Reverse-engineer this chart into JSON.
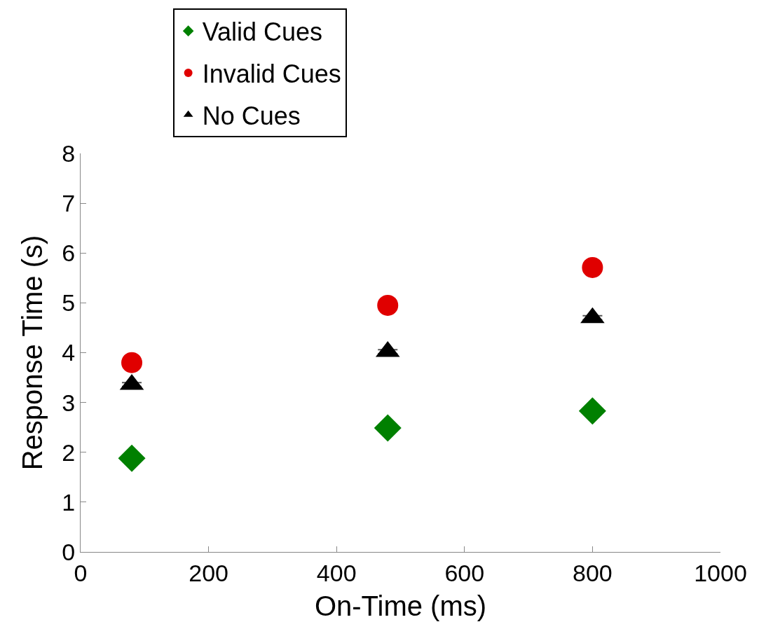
{
  "chart_data": {
    "type": "scatter",
    "xlabel": "On-Time (ms)",
    "ylabel": "Response Time (s)",
    "xlim": [
      0,
      1000
    ],
    "xticks": [
      0,
      200,
      400,
      600,
      800,
      1000
    ],
    "ylim": [
      0,
      8
    ],
    "yticks": [
      0,
      1,
      2,
      3,
      4,
      5,
      6,
      7,
      8
    ],
    "legend": "top",
    "x": [
      80,
      480,
      800
    ],
    "series": [
      {
        "name": "Valid Cues",
        "color": "#008000",
        "marker": "diamond",
        "values": [
          1.88,
          2.49,
          2.83
        ],
        "errors": [
          0.03,
          0.03,
          0.03
        ]
      },
      {
        "name": "Invalid Cues",
        "color": "#e00000",
        "marker": "circle",
        "values": [
          3.8,
          4.95,
          5.71
        ],
        "errors": [
          0.03,
          0.03,
          0.03
        ]
      },
      {
        "name": "No Cues",
        "color": "#000000",
        "marker": "triangle",
        "values": [
          3.36,
          4.02,
          4.7
        ],
        "errors": [
          0.04,
          0.04,
          0.04
        ]
      }
    ]
  }
}
